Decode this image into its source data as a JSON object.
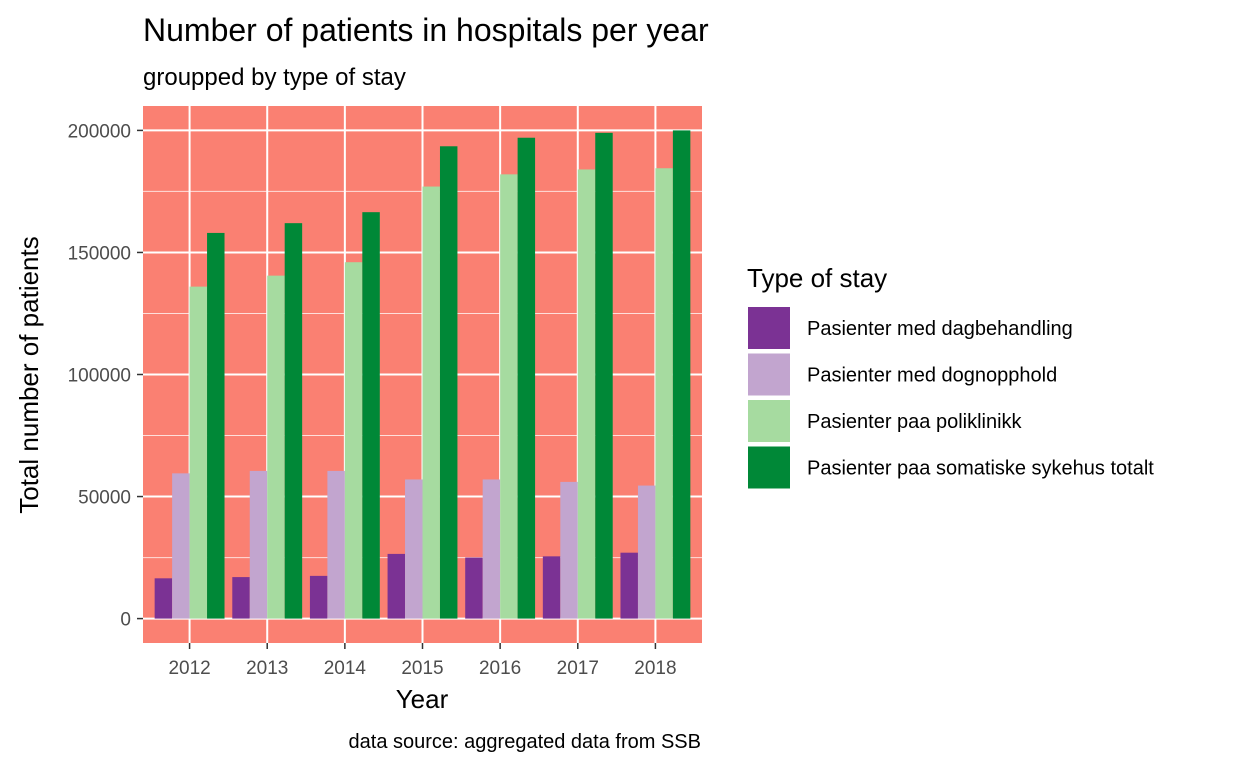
{
  "chart_data": {
    "type": "bar",
    "title": "Number of patients in hospitals per year",
    "subtitle": "groupped by type of stay",
    "xlabel": "Year",
    "ylabel": "Total number of patients",
    "caption": "data source: aggregated data from SSB",
    "categories": [
      "2012",
      "2013",
      "2014",
      "2015",
      "2016",
      "2017",
      "2018"
    ],
    "ylim": [
      -10000,
      210000
    ],
    "yticks": [
      0,
      50000,
      100000,
      150000,
      200000
    ],
    "ytick_labels": [
      "0",
      "50000",
      "100000",
      "150000",
      "200000"
    ],
    "grid": true,
    "legend": {
      "title": "Type of stay",
      "position": "right"
    },
    "series": [
      {
        "name": "Pasienter med dagbehandling",
        "color": "#7b3294",
        "values": [
          16500,
          17000,
          17500,
          26500,
          25000,
          25500,
          27000
        ]
      },
      {
        "name": "Pasienter med dognopphold",
        "color": "#c2a5cf",
        "values": [
          59500,
          60500,
          60500,
          57000,
          57000,
          56000,
          54500
        ]
      },
      {
        "name": "Pasienter paa poliklinikk",
        "color": "#a6dba0",
        "values": [
          136000,
          140500,
          146000,
          177000,
          182000,
          184000,
          184500
        ]
      },
      {
        "name": "Pasienter paa somatiske sykehus totalt",
        "color": "#008837",
        "values": [
          158000,
          162000,
          166500,
          193500,
          197000,
          199000,
          200000
        ]
      }
    ],
    "panel_background": "#fa8072"
  }
}
